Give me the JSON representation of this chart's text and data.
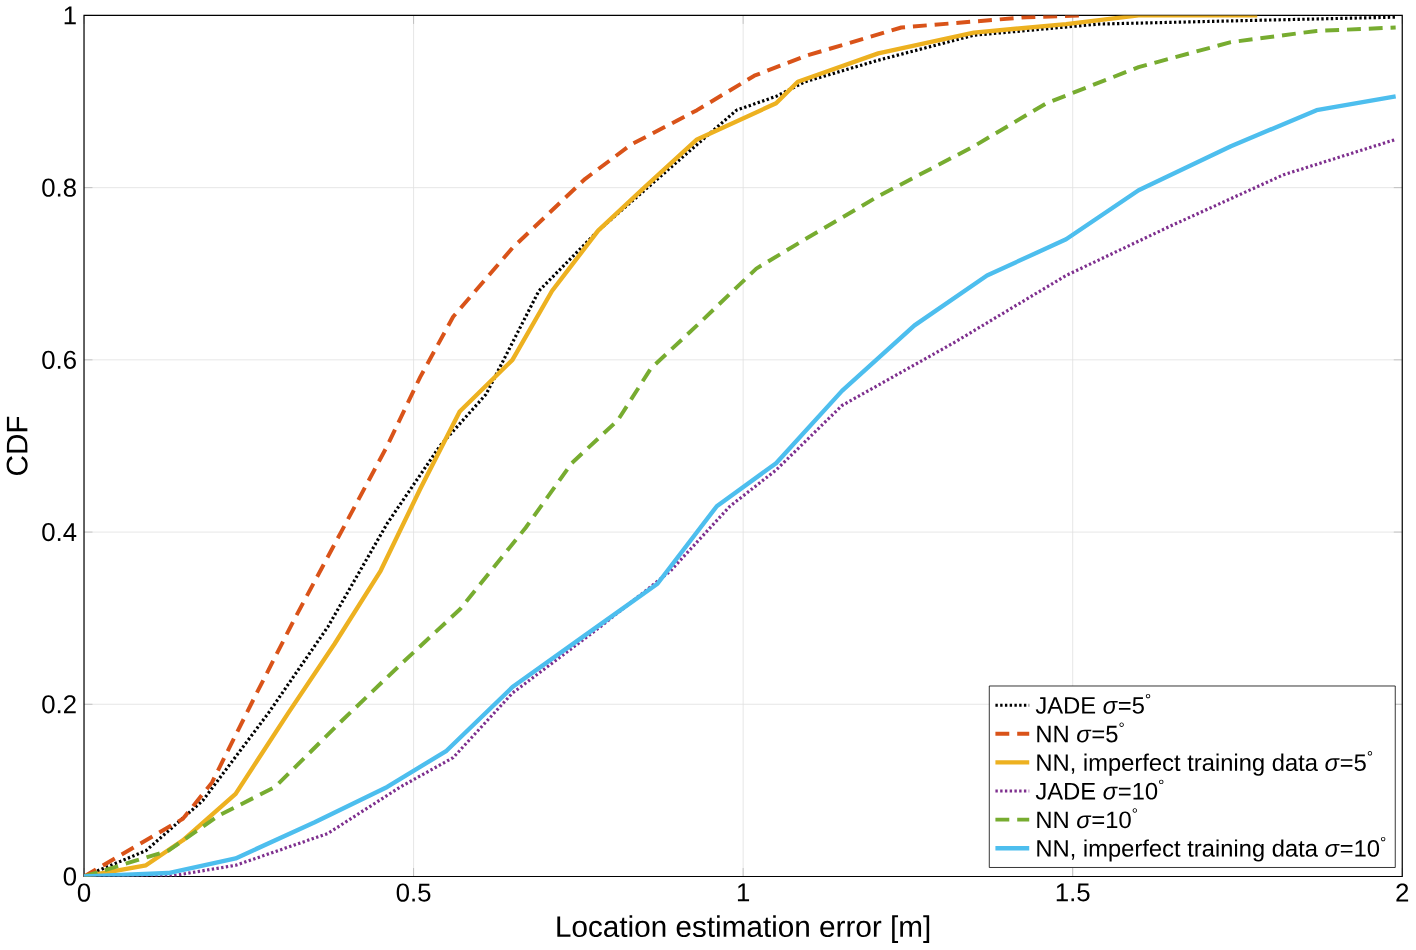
{
  "chart_data": {
    "type": "line",
    "xlabel": "Location estimation error [m]",
    "ylabel": "CDF",
    "xlim": [
      0,
      2
    ],
    "ylim": [
      0,
      1
    ],
    "xticks": [
      0,
      0.5,
      1,
      1.5,
      2
    ],
    "yticks": [
      0,
      0.2,
      0.4,
      0.6,
      0.8,
      1
    ],
    "grid": true,
    "legend": "bottom right",
    "series": [
      {
        "name": "JADE *σ*=5$^{°}$",
        "color": "#000000",
        "line_style": "dotted",
        "x": [
          0,
          0.094,
          0.18,
          0.28,
          0.37,
          0.46,
          0.54,
          0.61,
          0.69,
          0.78,
          0.87,
          0.99,
          1.05,
          1.094,
          1.205,
          1.35,
          1.54,
          1.76,
          1.99
        ],
        "values": [
          0,
          0.03,
          0.088,
          0.19,
          0.29,
          0.41,
          0.5,
          0.56,
          0.68,
          0.75,
          0.81,
          0.89,
          0.906,
          0.923,
          0.948,
          0.977,
          0.99,
          0.994,
          0.998
        ]
      },
      {
        "name": "NN *σ*=5$^{°}$",
        "color": "#d95319",
        "line_style": "dashed",
        "x": [
          0,
          0.15,
          0.194,
          0.26,
          0.32,
          0.39,
          0.46,
          0.51,
          0.56,
          0.65,
          0.76,
          0.83,
          0.93,
          1.017,
          1.095,
          1.24,
          1.43,
          1.52
        ],
        "values": [
          0,
          0.067,
          0.109,
          0.21,
          0.3,
          0.4,
          0.5,
          0.58,
          0.65,
          0.73,
          0.81,
          0.85,
          0.89,
          0.93,
          0.953,
          0.986,
          0.998,
          1
        ]
      },
      {
        "name": "NN, imperfect training data *σ*=5$^{°}$",
        "color": "#edb120",
        "line_style": "solid",
        "x": [
          0,
          0.094,
          0.15,
          0.23,
          0.31,
          0.38,
          0.45,
          0.51,
          0.57,
          0.65,
          0.71,
          0.78,
          0.85,
          0.93,
          1.05,
          1.083,
          1.205,
          1.35,
          1.49,
          1.6,
          1.78
        ],
        "values": [
          0,
          0.013,
          0.042,
          0.096,
          0.19,
          0.27,
          0.355,
          0.45,
          0.54,
          0.6,
          0.68,
          0.75,
          0.8,
          0.856,
          0.898,
          0.923,
          0.956,
          0.98,
          0.99,
          1,
          1
        ]
      },
      {
        "name": "JADE *σ*=10$^{°}$",
        "color": "#7e2f8e",
        "line_style": "dotted",
        "x": [
          0,
          0.128,
          0.23,
          0.37,
          0.48,
          0.56,
          0.65,
          0.78,
          0.89,
          0.98,
          1.05,
          1.15,
          1.32,
          1.49,
          1.65,
          1.82,
          1.99
        ],
        "values": [
          0,
          0,
          0.013,
          0.05,
          0.104,
          0.138,
          0.213,
          0.288,
          0.355,
          0.43,
          0.472,
          0.547,
          0.62,
          0.698,
          0.756,
          0.815,
          0.856
        ]
      },
      {
        "name": "NN *σ*=10$^{°}$",
        "color": "#77ac30",
        "line_style": "dashed",
        "x": [
          0,
          0.128,
          0.205,
          0.29,
          0.39,
          0.48,
          0.57,
          0.67,
          0.74,
          0.81,
          0.86,
          0.93,
          1.02,
          1.094,
          1.205,
          1.35,
          1.46,
          1.6,
          1.74,
          1.87,
          1.99
        ],
        "values": [
          0,
          0.03,
          0.071,
          0.104,
          0.18,
          0.246,
          0.31,
          0.405,
          0.48,
          0.53,
          0.59,
          0.64,
          0.706,
          0.74,
          0.79,
          0.848,
          0.898,
          0.94,
          0.969,
          0.982,
          0.986
        ]
      },
      {
        "name": "NN, imperfect training data *σ*=10$^{°}$",
        "color": "#4dbeee",
        "line_style": "solid",
        "x": [
          0,
          0.128,
          0.23,
          0.35,
          0.46,
          0.55,
          0.65,
          0.76,
          0.87,
          0.96,
          1.05,
          1.15,
          1.26,
          1.37,
          1.49,
          1.6,
          1.74,
          1.87,
          1.99
        ],
        "values": [
          0,
          0.004,
          0.021,
          0.063,
          0.104,
          0.146,
          0.22,
          0.28,
          0.34,
          0.43,
          0.48,
          0.564,
          0.64,
          0.698,
          0.74,
          0.797,
          0.848,
          0.89,
          0.906
        ]
      }
    ]
  }
}
